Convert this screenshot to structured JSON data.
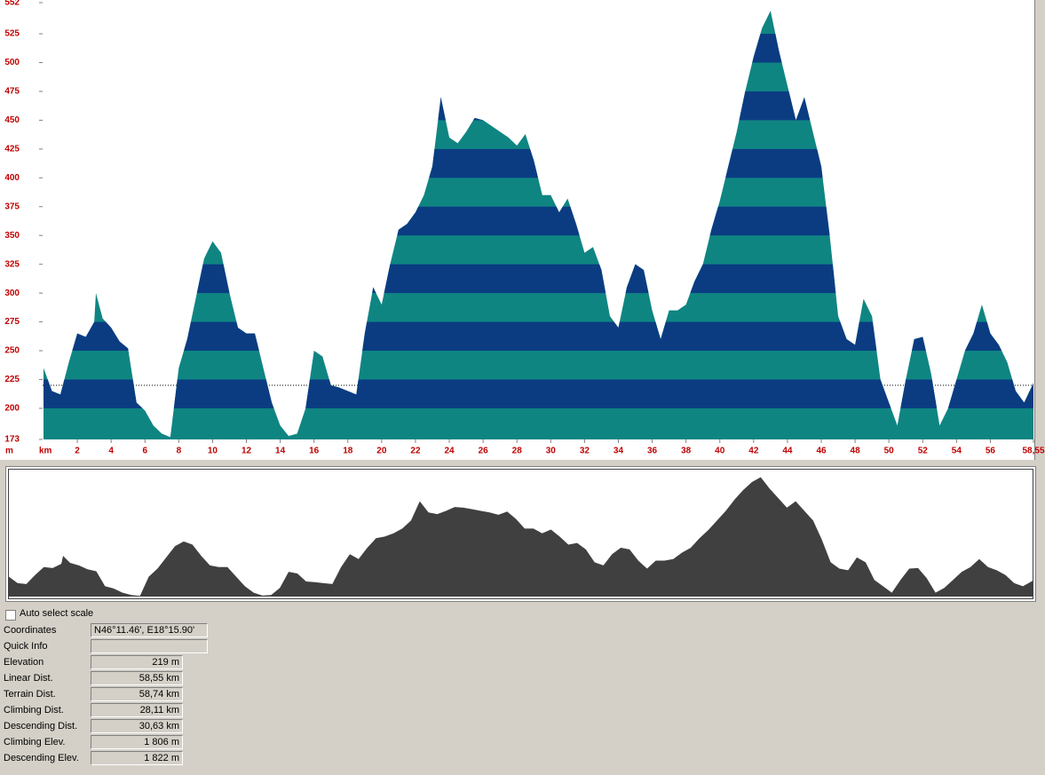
{
  "chart_data": {
    "type": "area",
    "x_label": "km",
    "y_label": "m",
    "xlim": [
      0,
      58.55
    ],
    "ylim": [
      173,
      552
    ],
    "xticks": [
      2,
      4,
      6,
      8,
      10,
      12,
      14,
      16,
      18,
      20,
      22,
      24,
      26,
      28,
      30,
      32,
      34,
      36,
      38,
      40,
      42,
      44,
      46,
      48,
      50,
      52,
      54,
      56,
      {
        "value": 58.55,
        "label": "58,55"
      }
    ],
    "yticks": [
      173,
      200,
      225,
      250,
      275,
      300,
      325,
      350,
      375,
      400,
      425,
      450,
      475,
      500,
      525,
      552
    ],
    "colors": [
      "#0f8582",
      "#0b3c82"
    ],
    "overview_color": "#404040",
    "x": [
      0,
      0.5,
      1,
      1.5,
      2,
      2.5,
      3,
      3.1,
      3.5,
      4,
      4.5,
      5,
      5.5,
      6,
      6.5,
      7,
      7.5,
      8,
      8.5,
      9,
      9.5,
      10,
      10.5,
      11,
      11.5,
      12,
      12.5,
      13,
      13.5,
      14,
      14.5,
      15,
      15.5,
      16,
      16.5,
      17,
      17.5,
      18,
      18.5,
      19,
      19.5,
      20,
      20.5,
      21,
      21.5,
      22,
      22.5,
      23,
      23.5,
      24,
      24.5,
      25,
      25.5,
      26,
      26.5,
      27,
      27.5,
      28,
      28.5,
      29,
      29.5,
      30,
      30.5,
      31,
      31.5,
      32,
      32.5,
      33,
      33.5,
      34,
      34.5,
      35,
      35.5,
      36,
      36.5,
      37,
      37.5,
      38,
      38.5,
      39,
      39.5,
      40,
      40.5,
      41,
      41.5,
      42,
      42.5,
      43,
      43.5,
      44,
      44.5,
      45,
      45.5,
      46,
      46.5,
      47,
      47.5,
      48,
      48.5,
      49,
      49.5,
      50,
      50.5,
      51,
      51.5,
      52,
      52.5,
      53,
      53.5,
      54,
      54.5,
      55,
      55.5,
      56,
      56.5,
      57,
      57.5,
      58,
      58.55
    ],
    "values": [
      235,
      215,
      212,
      240,
      265,
      262,
      275,
      300,
      278,
      270,
      258,
      252,
      205,
      198,
      185,
      178,
      175,
      235,
      260,
      295,
      330,
      345,
      335,
      300,
      270,
      265,
      265,
      235,
      205,
      185,
      176,
      178,
      200,
      250,
      245,
      220,
      218,
      215,
      212,
      265,
      305,
      290,
      325,
      355,
      360,
      370,
      385,
      410,
      470,
      435,
      430,
      440,
      452,
      450,
      445,
      440,
      435,
      428,
      438,
      415,
      385,
      385,
      370,
      382,
      360,
      335,
      340,
      320,
      280,
      270,
      305,
      325,
      320,
      285,
      260,
      285,
      285,
      290,
      310,
      325,
      355,
      380,
      410,
      440,
      475,
      505,
      530,
      545,
      510,
      480,
      450,
      470,
      440,
      410,
      350,
      280,
      260,
      255,
      295,
      280,
      225,
      205,
      185,
      225,
      260,
      262,
      230,
      185,
      200,
      225,
      250,
      265,
      290,
      265,
      255,
      240,
      215,
      205,
      222
    ]
  },
  "form": {
    "auto_scale": "Auto select scale",
    "fields": [
      {
        "label": "Coordinates",
        "value": "N46°11.46', E18°15.90'"
      },
      {
        "label": "Quick Info"
      },
      {
        "label": "Elevation",
        "value": "219 m"
      },
      {
        "label": "Linear Dist.",
        "value": "58,55 km"
      },
      {
        "label": "Terrain Dist.",
        "value": "58,74 km"
      },
      {
        "label": "Climbing Dist.",
        "value": "28,11 km"
      },
      {
        "label": "Descending Dist.",
        "value": "30,63 km"
      },
      {
        "label": "Climbing Elev.",
        "value": "1 806 m"
      },
      {
        "label": "Descending Elev.",
        "value": "1 822 m"
      }
    ]
  }
}
